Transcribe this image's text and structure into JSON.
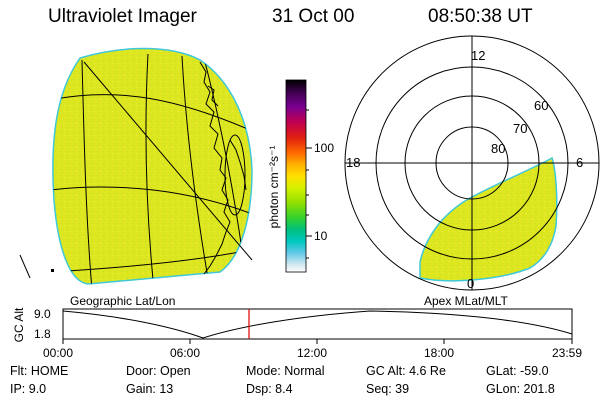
{
  "header": {
    "instrument": "Ultraviolet Imager",
    "date": "31 Oct 00",
    "time": "08:50:38 UT"
  },
  "panels": {
    "left_caption": "Geographic Lat/Lon",
    "right_caption": "Apex MLat/MLT"
  },
  "colorbar": {
    "unit_label": "photon cm⁻²s⁻¹",
    "ticks": [
      "100",
      "10"
    ],
    "colors": [
      "#000000",
      "#440055",
      "#7a0090",
      "#b00060",
      "#d00020",
      "#ff3000",
      "#ff7a00",
      "#ffb000",
      "#ffe000",
      "#e8f000",
      "#c8f000",
      "#90e000",
      "#40d020",
      "#00c070",
      "#00c8b0",
      "#40c0e0",
      "#a0d8e8",
      "#e8f0f0",
      "#ffffff"
    ]
  },
  "polar": {
    "mlt_labels": {
      "top": "12",
      "left": "18",
      "right": "6",
      "bottom": "0"
    },
    "lat_labels": [
      "60",
      "70",
      "80"
    ]
  },
  "altitude_plot": {
    "ylabel": "GC Alt",
    "yticks": [
      "9.0",
      "1.8"
    ],
    "xticks": [
      "00:00",
      "06:00",
      "12:00",
      "18:00",
      "23:59"
    ],
    "current_time_color": "#e00000"
  },
  "status": {
    "flt": "Flt: HOME",
    "ip": "IP:  9.0",
    "door": "Door: Open",
    "gain": "Gain: 13",
    "mode": "Mode: Normal",
    "dsp": "Dsp:    8.4",
    "gcalt": "GC Alt: 4.6 Re",
    "seq": "Seq: 39",
    "glat": "GLat: -59.0",
    "glon": "GLon: 201.8"
  },
  "image_fill_color": "#ddee22"
}
